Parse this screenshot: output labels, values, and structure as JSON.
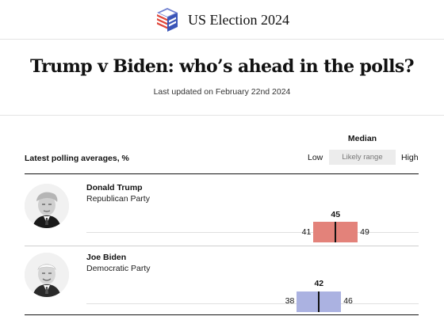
{
  "header": {
    "brand": "US Election 2024",
    "logo_icon": "ballot-box-icon"
  },
  "title": {
    "headline": "Trump v Biden: who’s ahead in the polls?",
    "updated": "Last updated on February 22nd 2024"
  },
  "table": {
    "subtitle": "Latest polling averages, %",
    "key": {
      "median": "Median",
      "low": "Low",
      "range": "Likely range",
      "high": "High"
    }
  },
  "chart_data": {
    "type": "range",
    "xlim": [
      0,
      60
    ],
    "series": [
      {
        "name": "Donald Trump",
        "party": "Republican Party",
        "low": 41,
        "median": 45,
        "high": 49,
        "color": "#e3827a"
      },
      {
        "name": "Joe Biden",
        "party": "Democratic Party",
        "low": 38,
        "median": 42,
        "high": 46,
        "color": "#abb2e1"
      }
    ]
  },
  "candidates": [
    {
      "name": "Donald Trump",
      "party": "Republican Party",
      "low": "41",
      "median": "45",
      "high": "49"
    },
    {
      "name": "Joe Biden",
      "party": "Democratic Party",
      "low": "38",
      "median": "42",
      "high": "46"
    }
  ]
}
